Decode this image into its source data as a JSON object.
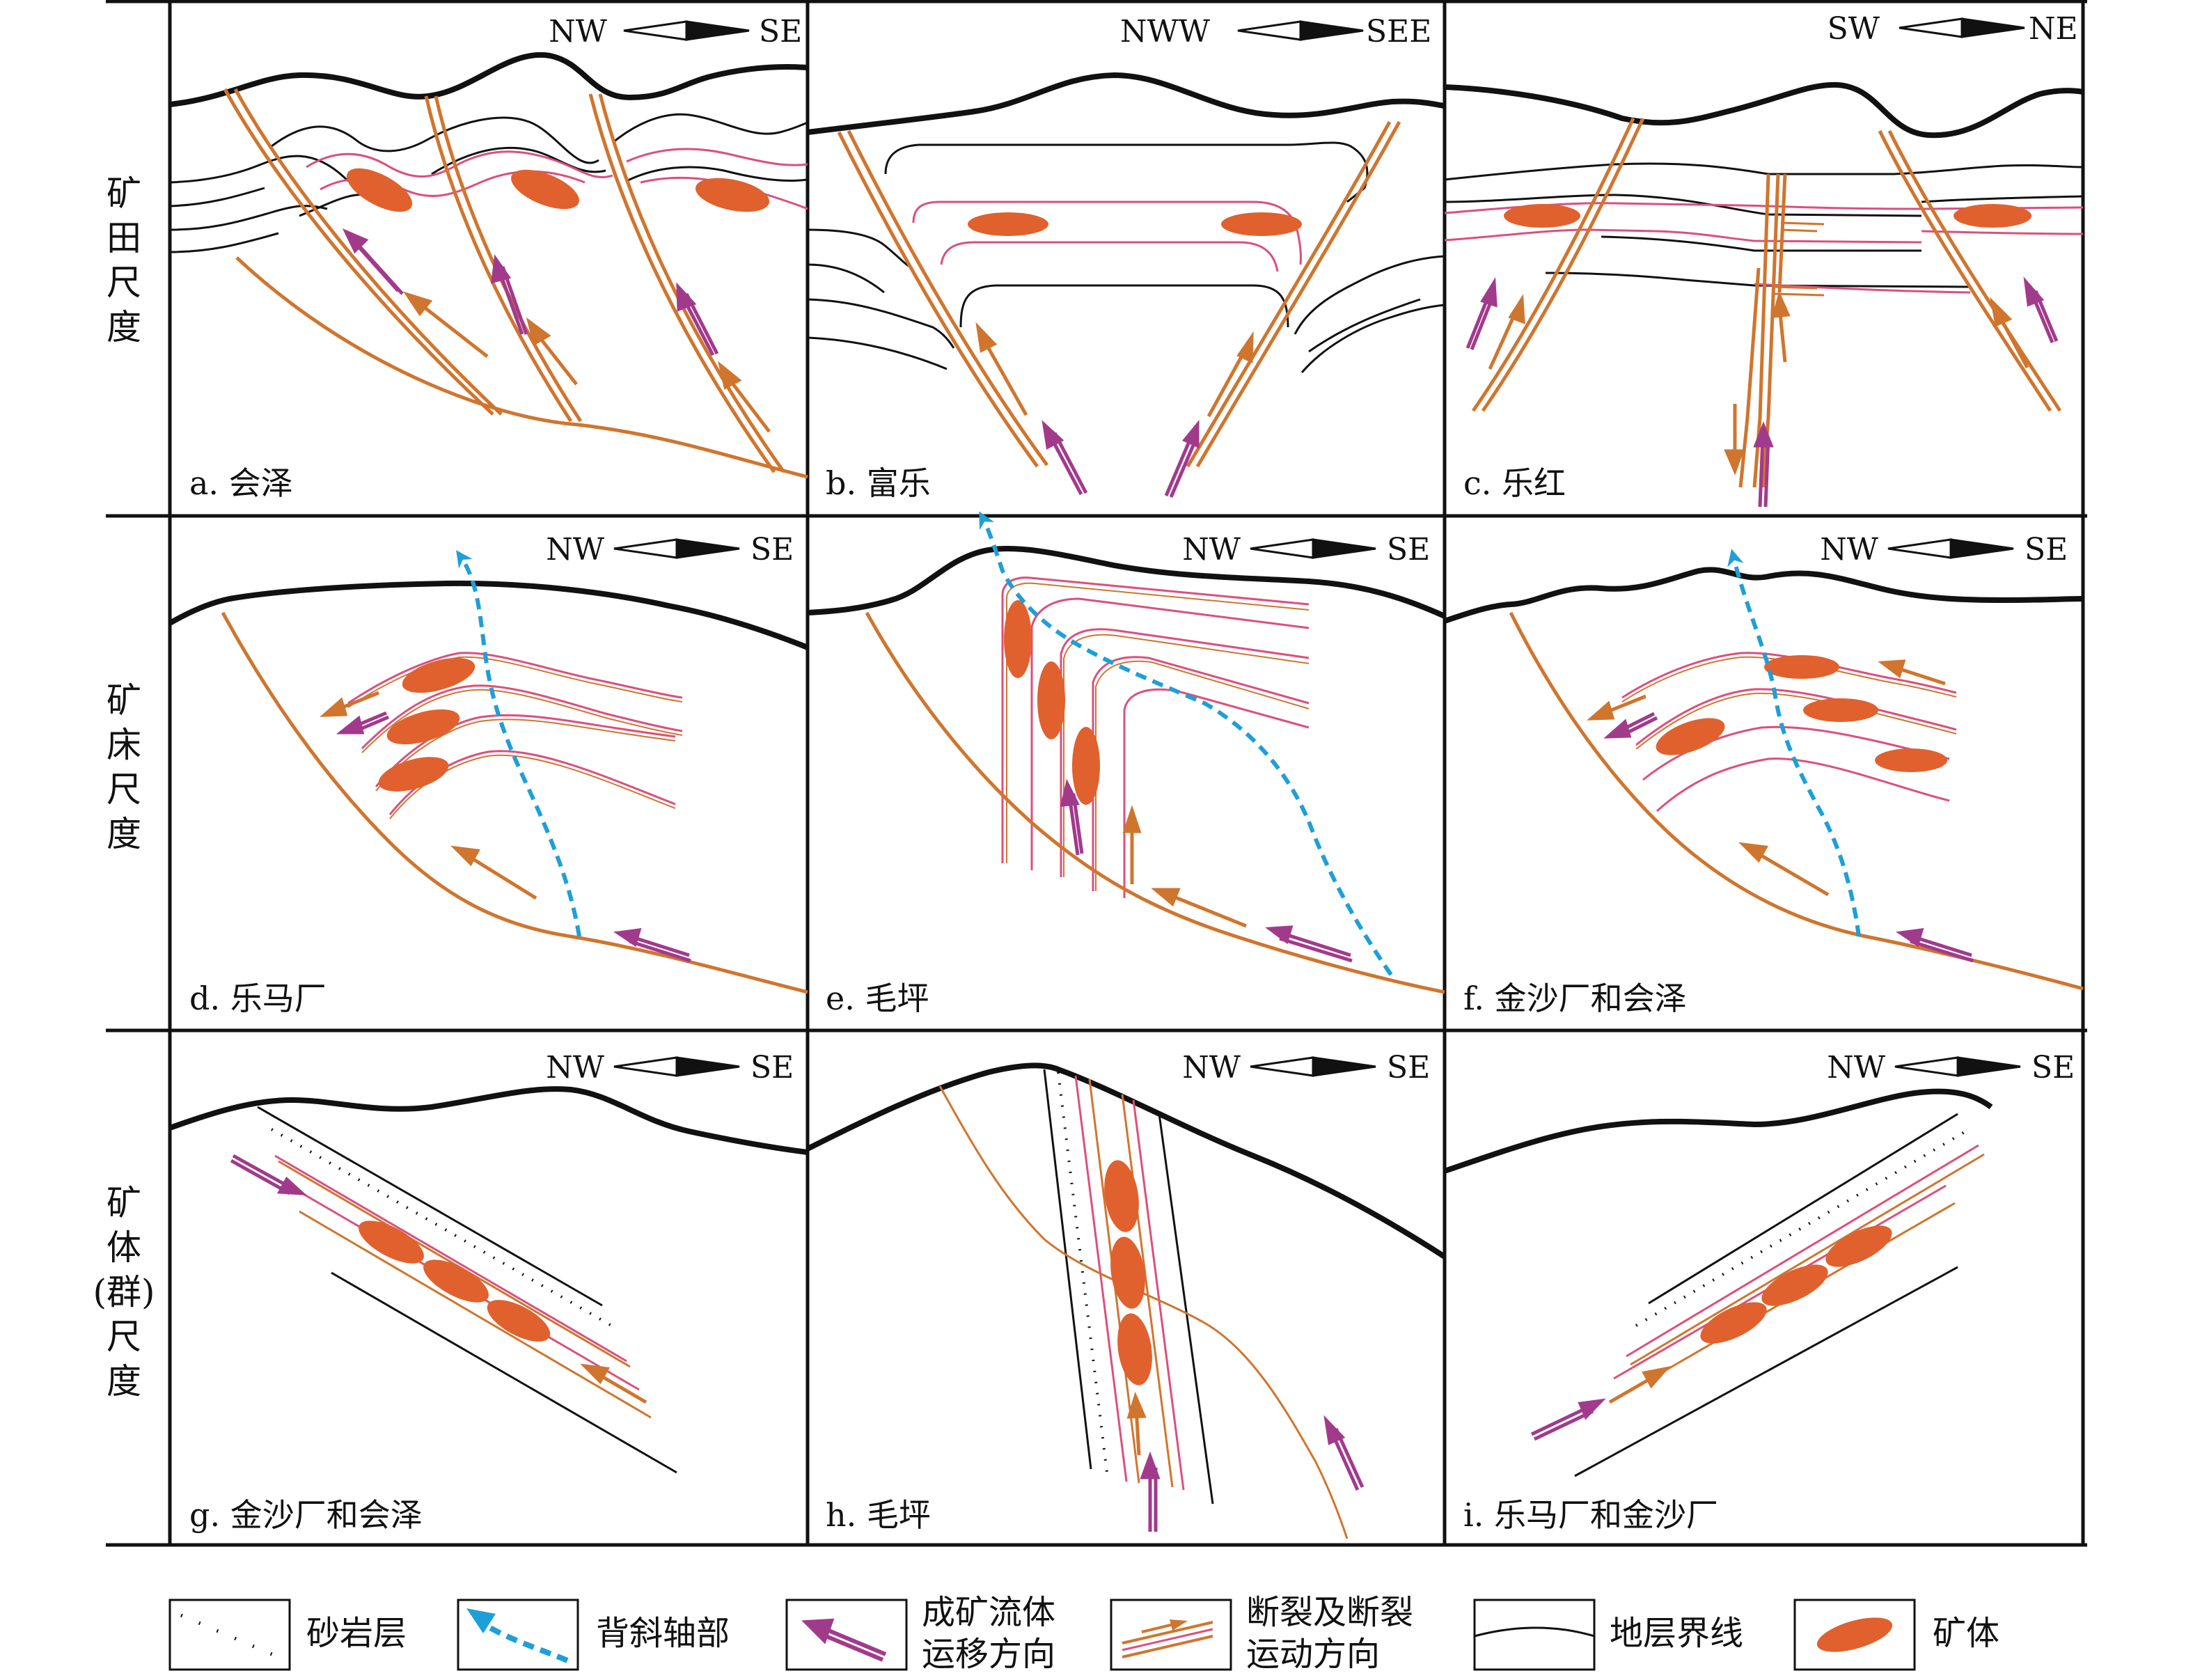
{
  "row_labels": [
    "矿田尺度",
    "矿床尺度",
    "矿体(群)尺度"
  ],
  "panels": [
    {
      "id": "a",
      "label": "a. 会泽",
      "dir_left": "NW",
      "dir_right": "SE"
    },
    {
      "id": "b",
      "label": "b. 富乐",
      "dir_left": "NWW",
      "dir_right": "SEE"
    },
    {
      "id": "c",
      "label": "c. 乐红",
      "dir_left": "SW",
      "dir_right": "NE"
    },
    {
      "id": "d",
      "label": "d. 乐马厂",
      "dir_left": "NW",
      "dir_right": "SE"
    },
    {
      "id": "e",
      "label": "e. 毛坪",
      "dir_left": "NW",
      "dir_right": "SE"
    },
    {
      "id": "f",
      "label": "f. 金沙厂和会泽",
      "dir_left": "NW",
      "dir_right": "SE"
    },
    {
      "id": "g",
      "label": "g. 金沙厂和会泽",
      "dir_left": "NW",
      "dir_right": "SE"
    },
    {
      "id": "h",
      "label": "h. 毛坪",
      "dir_left": "NW",
      "dir_right": "SE"
    },
    {
      "id": "i",
      "label": "i. 乐马厂和金沙厂",
      "dir_left": "NW",
      "dir_right": "SE"
    }
  ],
  "legend": [
    {
      "key": "sandstone",
      "label": "砂岩层"
    },
    {
      "key": "anticline-axis",
      "label": "背斜轴部"
    },
    {
      "key": "fluid-direction",
      "label_line1": "成矿流体",
      "label_line2": "运移方向"
    },
    {
      "key": "fault",
      "label_line1": "断裂及断裂",
      "label_line2": "运动方向"
    },
    {
      "key": "strata-boundary",
      "label": "地层界线"
    },
    {
      "key": "ore-body",
      "label": "矿体"
    }
  ],
  "colors": {
    "fault": "#d0752e",
    "ore": "#e0612e",
    "fluid": "#a23a8c",
    "anticline": "#1f9fd8",
    "ore_layer": "#dc4f7d",
    "strata": "#111111"
  }
}
